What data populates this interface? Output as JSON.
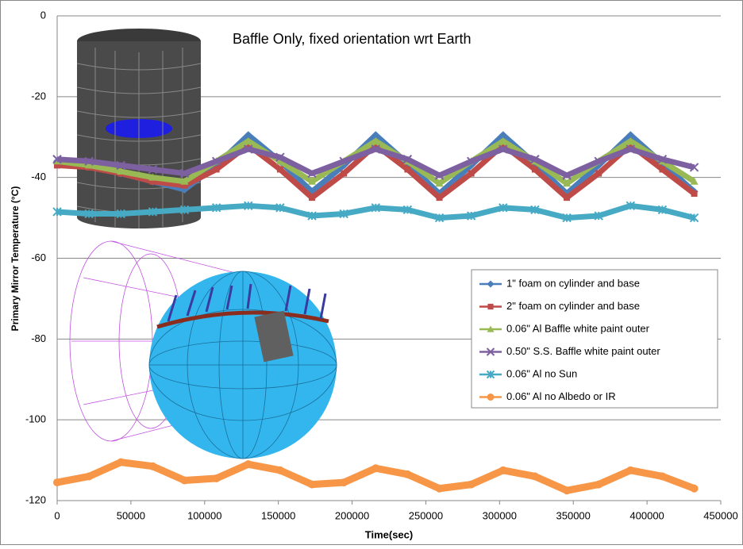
{
  "chart_data": {
    "type": "line",
    "title": "Baffle Only, fixed orientation wrt Earth",
    "x_label": "Time(sec)",
    "y_label": "Primary Mirror Temperature (°C)",
    "x": [
      0,
      21600,
      43200,
      64800,
      86400,
      108000,
      129600,
      151200,
      172800,
      194400,
      216000,
      237600,
      259200,
      280800,
      302400,
      324000,
      345600,
      367200,
      388800,
      410400,
      432000
    ],
    "series": [
      {
        "name": "1\" foam on cylinder and base",
        "color": "#4a7ebb",
        "marker": "diamond",
        "values": [
          -36,
          -37,
          -39,
          -41,
          -43,
          -37,
          -29.5,
          -36,
          -43.5,
          -37,
          -29.5,
          -36.5,
          -44,
          -37,
          -29.5,
          -36.5,
          -44,
          -37,
          -29.5,
          -36.5,
          -43.5
        ]
      },
      {
        "name": "2\" foam on cylinder and base",
        "color": "#be4b48",
        "marker": "square",
        "values": [
          -37,
          -37.5,
          -39,
          -41,
          -42,
          -38,
          -32,
          -38,
          -45,
          -39,
          -32,
          -38,
          -45,
          -39,
          -32,
          -38,
          -45,
          -39,
          -32,
          -38,
          -44
        ]
      },
      {
        "name": "0.06\" Al Baffle white paint outer",
        "color": "#98b954",
        "marker": "triangle",
        "values": [
          -36,
          -37,
          -38.5,
          -40,
          -41,
          -36,
          -31,
          -36,
          -41,
          -36,
          -31,
          -36,
          -41.5,
          -36,
          -31,
          -36,
          -41.5,
          -36,
          -31,
          -36,
          -41
        ]
      },
      {
        "name": "0.50\" S.S. Baffle white paint outer",
        "color": "#7d60a0",
        "marker": "cross",
        "values": [
          -35.5,
          -36,
          -37,
          -38,
          -39,
          -36,
          -33,
          -35,
          -39,
          -36,
          -33,
          -35.5,
          -39.5,
          -36,
          -33,
          -35.5,
          -39.5,
          -36,
          -33,
          -35.5,
          -37.5
        ]
      },
      {
        "name": "0.06\" Al no Sun",
        "color": "#46aac5",
        "marker": "star",
        "values": [
          -48.5,
          -49,
          -49,
          -48.5,
          -48,
          -47.5,
          -47,
          -47.5,
          -49.5,
          -49,
          -47.5,
          -48,
          -50,
          -49.5,
          -47.5,
          -48,
          -50,
          -49.5,
          -47,
          -48,
          -50
        ]
      },
      {
        "name": "0.06\" Al no Albedo or IR",
        "color": "#f79646",
        "marker": "circle",
        "values": [
          -115.5,
          -114,
          -110.5,
          -111.5,
          -115,
          -114.5,
          -111,
          -112.5,
          -116,
          -115.5,
          -112,
          -113.5,
          -117,
          -116,
          -112.5,
          -114,
          -117.5,
          -116,
          -112.5,
          -114,
          -117
        ]
      }
    ],
    "xlim": [
      0,
      450000
    ],
    "xticks": [
      0,
      50000,
      100000,
      150000,
      200000,
      250000,
      300000,
      350000,
      400000,
      450000
    ],
    "ylim": [
      -120,
      0
    ],
    "yticks": [
      -120,
      -100,
      -80,
      -60,
      -40,
      -20,
      0
    ],
    "grid": true,
    "legend": "right"
  }
}
